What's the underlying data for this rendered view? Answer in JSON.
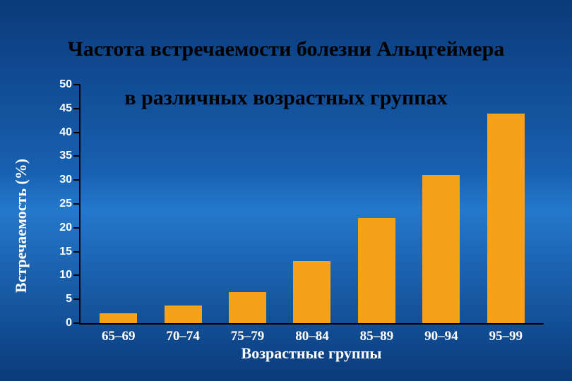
{
  "title": {
    "line1": "Частота встречаемости болезни Альцгеймера",
    "line2": "в различных возрастных группах",
    "fontsize": 30,
    "color": "#000000"
  },
  "chart": {
    "type": "bar",
    "categories": [
      "65–69",
      "70–74",
      "75–79",
      "80–84",
      "85–89",
      "90–94",
      "95–99"
    ],
    "values": [
      2,
      3.7,
      6.5,
      13,
      22,
      31,
      44
    ],
    "bar_color": "#f5a11a",
    "y": {
      "min": 0,
      "max": 50,
      "step": 5,
      "ticks": [
        0,
        5,
        10,
        15,
        20,
        25,
        30,
        35,
        40,
        45,
        50
      ]
    },
    "y_label": "Встречаемость (%)",
    "x_label": "Возрастные группы",
    "axis_color": "#000000",
    "tick_label_color": "#ffffff",
    "tick_label_fontsize": 16,
    "x_tick_fontsize": 19,
    "axis_label_fontsize": 22,
    "bar_width_ratio": 0.58,
    "background": "gradient-blue"
  }
}
